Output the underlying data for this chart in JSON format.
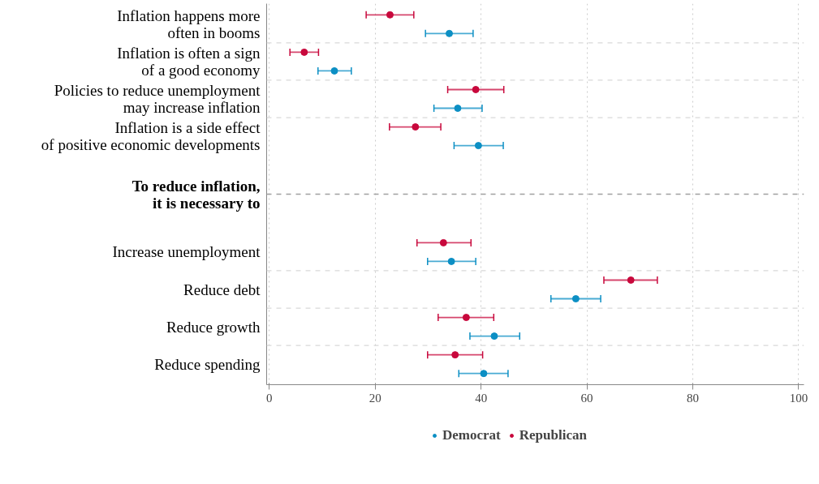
{
  "chart_data": {
    "type": "scatter",
    "categories": [
      "Inflation happens more\noften in booms",
      "Inflation is often a sign\nof a good economy",
      "Policies to reduce unemployment\nmay increase inflation",
      "Inflation is a side effect\nof positive economic developments",
      "To reduce inflation,\nit is necessary to",
      "Increase unemployment",
      "Reduce debt",
      "Reduce growth",
      "Reduce spending"
    ],
    "series": [
      {
        "name": "Democrat",
        "color": "#0c8fc4",
        "values": [
          34.0,
          12.3,
          35.6,
          39.5,
          null,
          34.4,
          57.9,
          42.5,
          40.5
        ],
        "errors": [
          [
            29.5,
            38.5
          ],
          [
            9.2,
            15.5
          ],
          [
            31.1,
            40.2
          ],
          [
            34.9,
            44.2
          ],
          null,
          [
            29.9,
            39.0
          ],
          [
            53.2,
            62.6
          ],
          [
            37.9,
            47.3
          ],
          [
            35.8,
            45.1
          ]
        ]
      },
      {
        "name": "Republican",
        "color": "#c8083c",
        "values": [
          22.8,
          6.6,
          39.0,
          27.6,
          null,
          32.9,
          68.3,
          37.2,
          35.1
        ],
        "errors": [
          [
            18.3,
            27.3
          ],
          [
            3.9,
            9.3
          ],
          [
            33.7,
            44.3
          ],
          [
            22.7,
            32.4
          ],
          null,
          [
            27.9,
            38.1
          ],
          [
            63.2,
            73.3
          ],
          [
            31.9,
            42.4
          ],
          [
            29.9,
            40.3
          ]
        ]
      }
    ],
    "orientation": "horizontal",
    "xlim": [
      -0.5,
      101
    ],
    "xticks": [
      0,
      20,
      40,
      60,
      80,
      100
    ],
    "grid": "x",
    "legend": "bottom",
    "marker": "circle",
    "ref_lines": [
      {
        "axis": "y",
        "value": "To reduce inflation,\nit is necessary to",
        "color": "#a0a0a0",
        "line_style": "dashed"
      }
    ]
  }
}
